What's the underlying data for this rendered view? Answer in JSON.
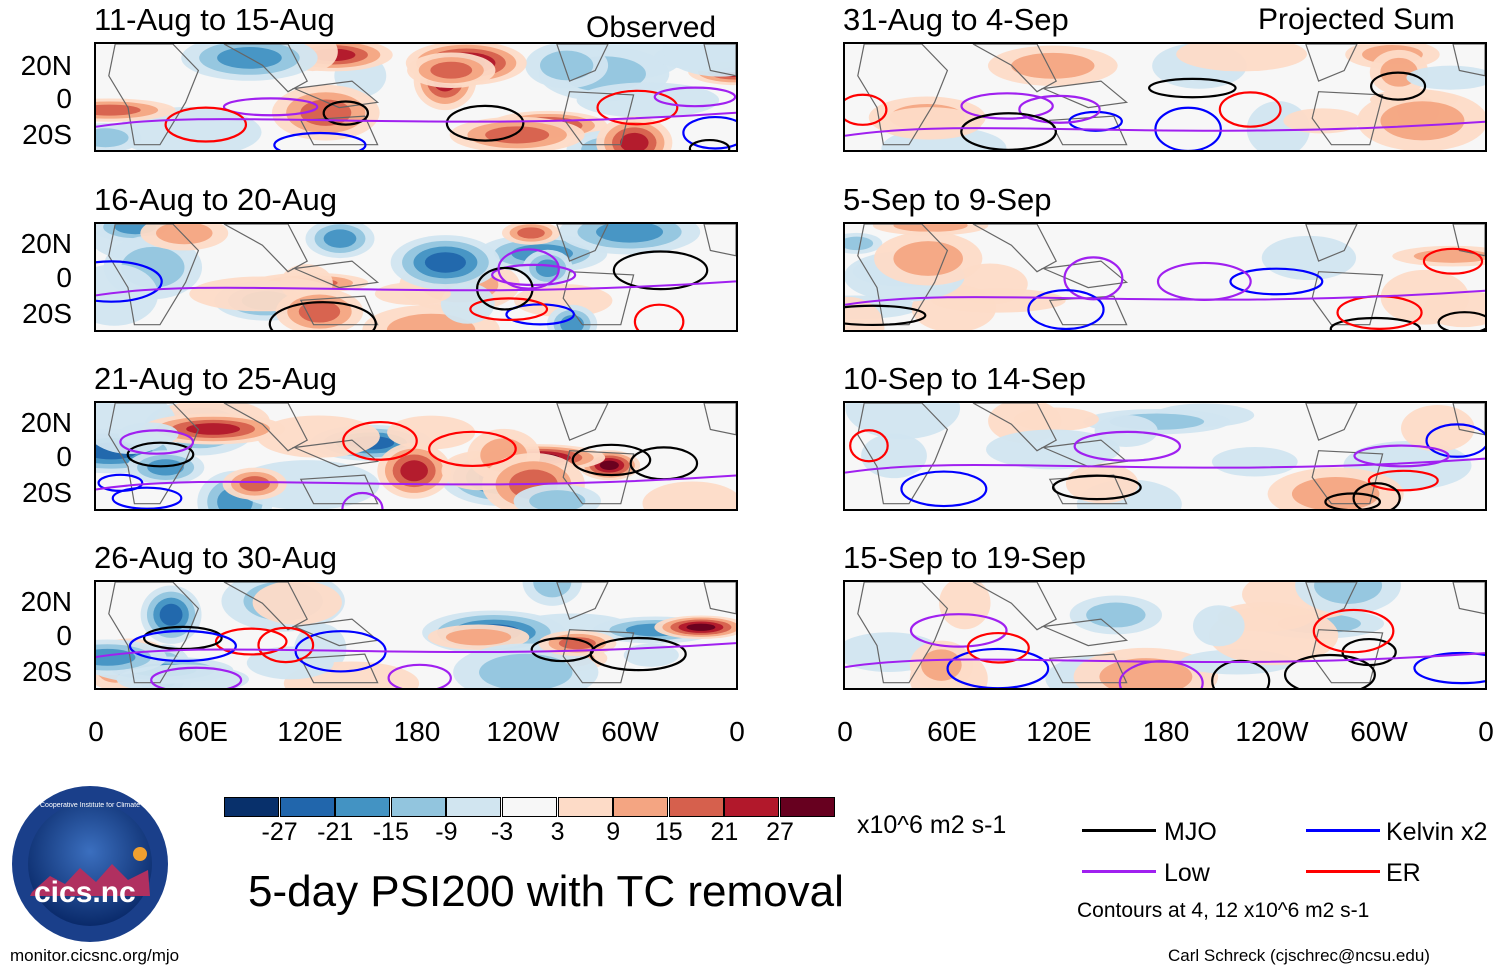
{
  "header": {
    "observed_label": "Observed",
    "projected_label": "Projected Sum"
  },
  "panels": {
    "left": [
      {
        "title": "11-Aug to 15-Aug"
      },
      {
        "title": "16-Aug to 20-Aug"
      },
      {
        "title": "21-Aug to 25-Aug"
      },
      {
        "title": "26-Aug to 30-Aug"
      }
    ],
    "right": [
      {
        "title": "31-Aug to 4-Sep"
      },
      {
        "title": "5-Sep to 9-Sep"
      },
      {
        "title": "10-Sep to 14-Sep"
      },
      {
        "title": "15-Sep to 19-Sep"
      }
    ]
  },
  "axes": {
    "lat_labels": [
      "20N",
      "0",
      "20S"
    ],
    "lon_labels": [
      "0",
      "60E",
      "120E",
      "180",
      "120W",
      "60W",
      "0"
    ]
  },
  "colorbar": {
    "ticks": [
      "-27",
      "-21",
      "-15",
      "-9",
      "-3",
      "3",
      "9",
      "15",
      "21",
      "27"
    ],
    "colors": [
      "#08306b",
      "#2166ac",
      "#4393c3",
      "#92c5de",
      "#d1e5f0",
      "#f7f7f7",
      "#fddbc7",
      "#f4a582",
      "#d6604d",
      "#b2182b",
      "#67001f"
    ],
    "units": "x10^6 m2 s-1"
  },
  "main_title": "5-day PSI200 with TC removal",
  "legend": {
    "items": [
      {
        "label": "MJO",
        "color": "#000000"
      },
      {
        "label": "Kelvin x2",
        "color": "#0000ff"
      },
      {
        "label": "Low",
        "color": "#a020f0"
      },
      {
        "label": "ER",
        "color": "#ff0000"
      }
    ],
    "contours_note": "Contours at 4, 12 x10^6 m2 s-1"
  },
  "logo": {
    "text": "cics.nc",
    "ring_text": "Cooperative Institute for Climate and Satellites"
  },
  "footer": {
    "url": "monitor.cicsnc.org/mjo",
    "credit": "Carl Schreck (cjschrec@ncsu.edu)"
  }
}
